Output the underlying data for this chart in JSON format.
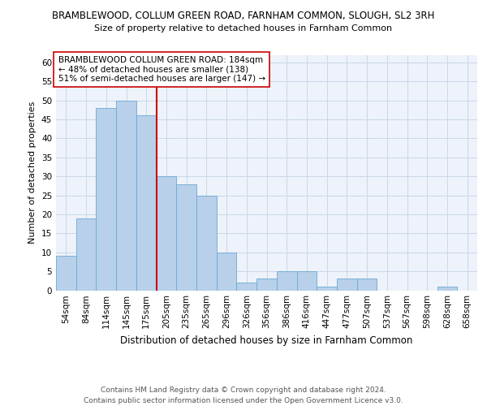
{
  "title1": "BRAMBLEWOOD, COLLUM GREEN ROAD, FARNHAM COMMON, SLOUGH, SL2 3RH",
  "title2": "Size of property relative to detached houses in Farnham Common",
  "xlabel": "Distribution of detached houses by size in Farnham Common",
  "ylabel": "Number of detached properties",
  "categories": [
    "54sqm",
    "84sqm",
    "114sqm",
    "145sqm",
    "175sqm",
    "205sqm",
    "235sqm",
    "265sqm",
    "296sqm",
    "326sqm",
    "356sqm",
    "386sqm",
    "416sqm",
    "447sqm",
    "477sqm",
    "507sqm",
    "537sqm",
    "567sqm",
    "598sqm",
    "628sqm",
    "658sqm"
  ],
  "values": [
    9,
    19,
    48,
    50,
    46,
    30,
    28,
    25,
    10,
    2,
    3,
    5,
    5,
    1,
    3,
    3,
    0,
    0,
    0,
    1,
    0
  ],
  "bar_color": "#b8d0ea",
  "bar_edge_color": "#6aaad4",
  "vline_color": "#cc0000",
  "vline_pos": 4.5,
  "annotation_text": "BRAMBLEWOOD COLLUM GREEN ROAD: 184sqm\n← 48% of detached houses are smaller (138)\n51% of semi-detached houses are larger (147) →",
  "annotation_box_color": "white",
  "annotation_box_edge": "#cc0000",
  "ylim": [
    0,
    62
  ],
  "yticks": [
    0,
    5,
    10,
    15,
    20,
    25,
    30,
    35,
    40,
    45,
    50,
    55,
    60
  ],
  "grid_color": "#c8d8e8",
  "bg_color": "#eef2fa",
  "footer1": "Contains HM Land Registry data © Crown copyright and database right 2024.",
  "footer2": "Contains public sector information licensed under the Open Government Licence v3.0.",
  "title1_fontsize": 8.5,
  "title2_fontsize": 8.0,
  "xlabel_fontsize": 8.5,
  "ylabel_fontsize": 8.0,
  "tick_fontsize": 7.5,
  "annotation_fontsize": 7.5,
  "footer_fontsize": 6.5
}
